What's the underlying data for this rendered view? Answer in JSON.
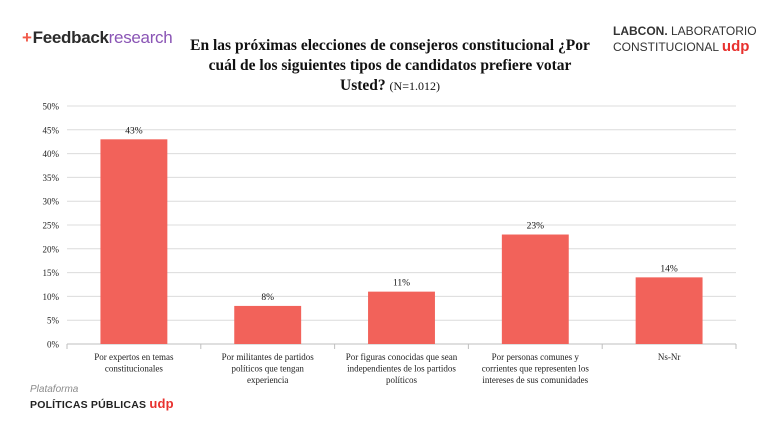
{
  "header": {
    "brand_mark": "+",
    "brand_feedback": "Feedback",
    "brand_research": "research",
    "labcon_line1_bold": "LABCON.",
    "labcon_line1_rest": " LABORATORIO",
    "labcon_line2": "CONSTITUCIONAL ",
    "labcon_udp": "udp"
  },
  "footer": {
    "plataforma": "Plataforma",
    "politicas": "POLÍTICAS PÚBLICAS ",
    "udp": "udp"
  },
  "chart_data": {
    "type": "bar",
    "title": "En las próximas elecciones de consejeros constitucional  ¿Por cuál de los siguientes tipos de candidatos prefiere votar Usted?",
    "title_note": "(N=1.012)",
    "categories": [
      [
        "Por expertos en temas",
        "constitucionales"
      ],
      [
        "Por militantes de partidos",
        "políticos que tengan",
        "experiencia"
      ],
      [
        "Por figuras conocidas que sean",
        "independientes de los partidos",
        "políticos"
      ],
      [
        "Por personas comunes y",
        "corrientes que representen los",
        "intereses de sus comunidades"
      ],
      [
        "Ns-Nr"
      ]
    ],
    "values": [
      43,
      8,
      11,
      23,
      14
    ],
    "data_labels": [
      "43%",
      "8%",
      "11%",
      "23%",
      "14%"
    ],
    "yticks": [
      "0%",
      "5%",
      "10%",
      "15%",
      "20%",
      "25%",
      "30%",
      "35%",
      "40%",
      "45%",
      "50%"
    ],
    "ylim": [
      0,
      50
    ],
    "grid": true,
    "bar_color": "#f2625a"
  }
}
